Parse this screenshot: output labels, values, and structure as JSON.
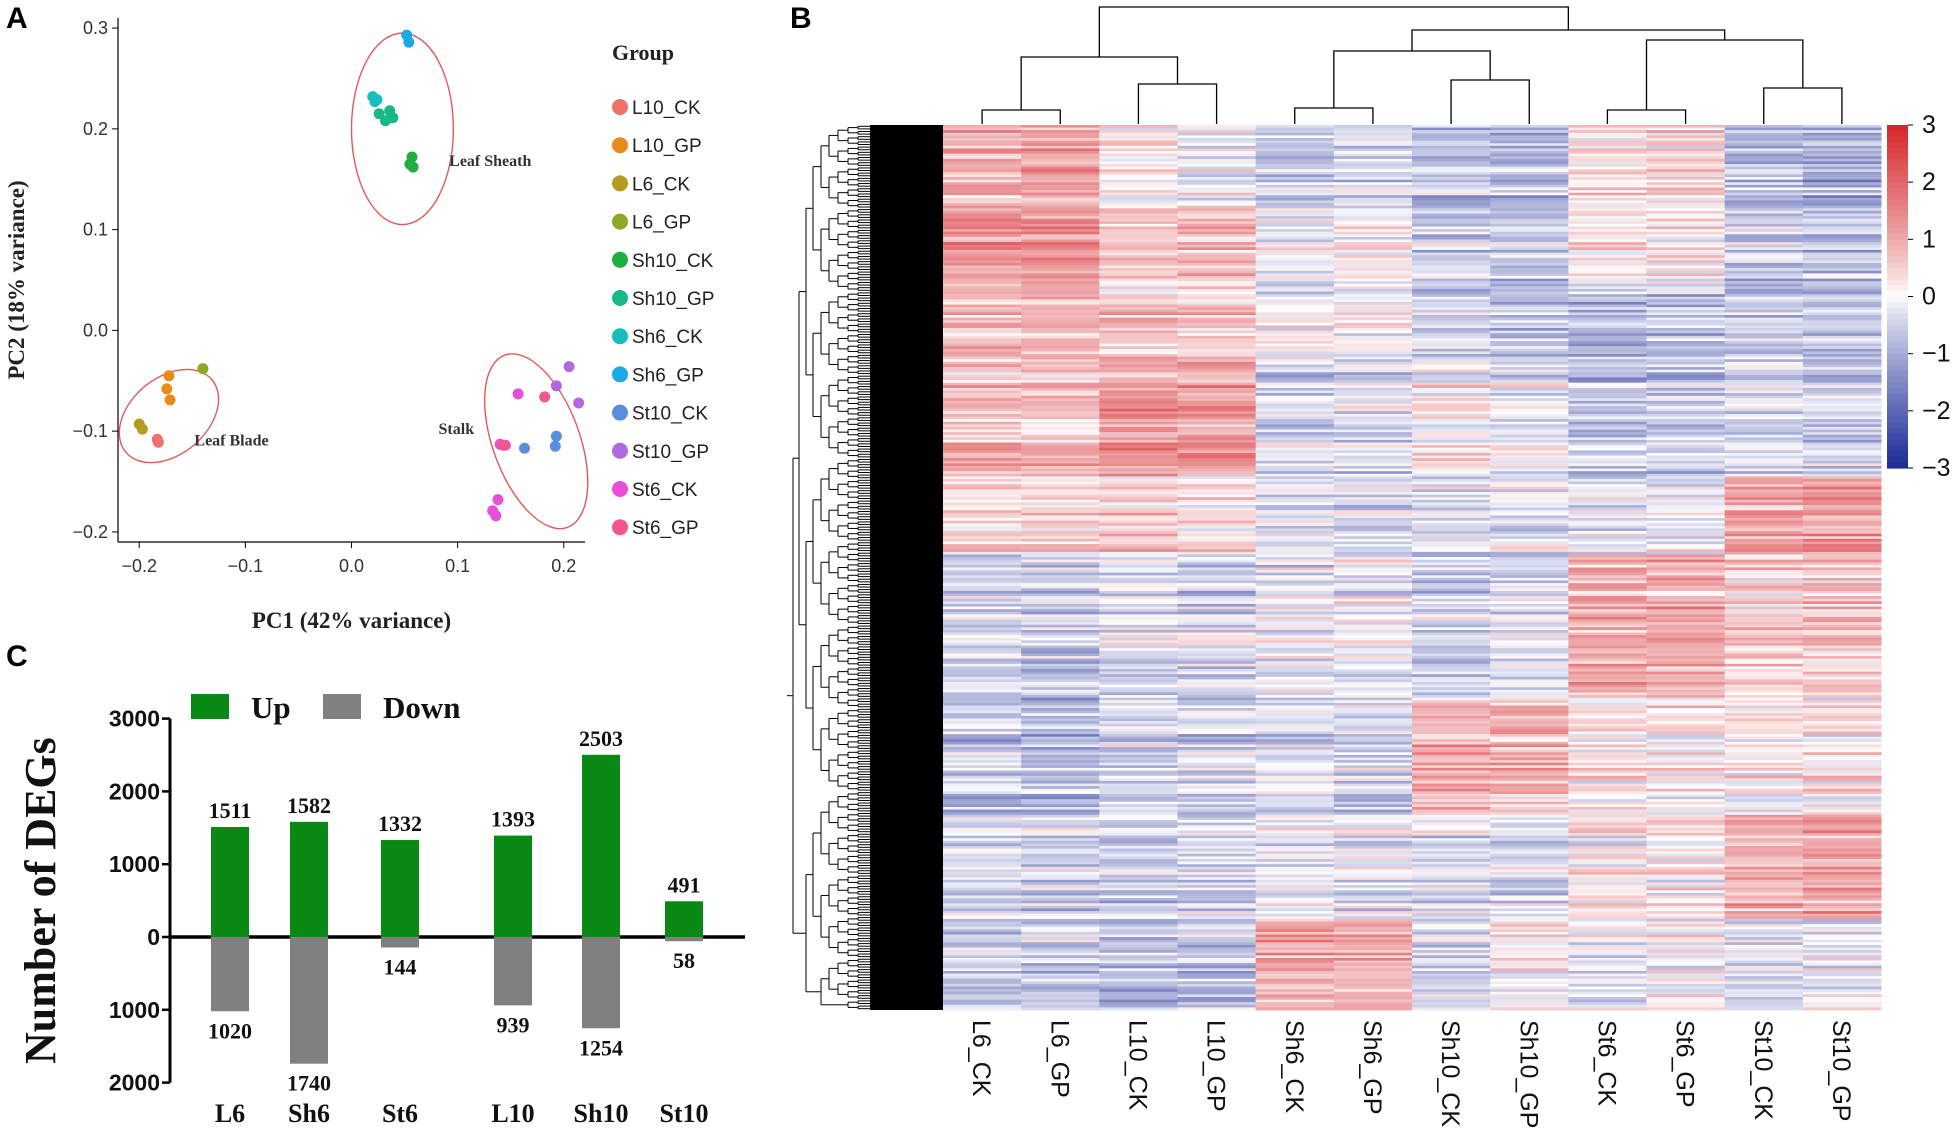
{
  "panel_letters": {
    "a": "A",
    "b": "B",
    "c": "C"
  },
  "chart_data": [
    {
      "type": "scatter",
      "panel": "A",
      "xlabel": "PC1 (42% variance)",
      "ylabel": "PC2 (18% variance)",
      "xlim": [
        -0.22,
        0.22
      ],
      "ylim": [
        -0.21,
        0.31
      ],
      "xticks": [
        -0.2,
        -0.1,
        0.0,
        0.1,
        0.2
      ],
      "xtick_labels": [
        "−0.2",
        "−0.1",
        "0.0",
        "0.1",
        "0.2"
      ],
      "yticks": [
        0.3,
        0.2,
        0.1,
        0.0,
        -0.1,
        -0.2
      ],
      "ytick_labels": [
        "0.3",
        "0.2",
        "0.1",
        "0.0",
        "−0.1",
        "−0.2"
      ],
      "legend_title": "Group",
      "groups": [
        {
          "name": "L10_CK",
          "color": "#f0706b",
          "points": [
            [
              -0.183,
              -0.108
            ],
            [
              -0.182,
              -0.111
            ]
          ]
        },
        {
          "name": "L10_GP",
          "color": "#e88a1c",
          "points": [
            [
              -0.172,
              -0.045
            ],
            [
              -0.174,
              -0.058
            ],
            [
              -0.171,
              -0.069
            ]
          ]
        },
        {
          "name": "L6_CK",
          "color": "#b59b1f",
          "points": [
            [
              -0.2,
              -0.093
            ],
            [
              -0.197,
              -0.098
            ]
          ]
        },
        {
          "name": "L6_GP",
          "color": "#8aaa26",
          "points": [
            [
              -0.14,
              -0.038
            ]
          ]
        },
        {
          "name": "Sh10_CK",
          "color": "#1fae3f",
          "points": [
            [
              0.057,
              0.172
            ],
            [
              0.058,
              0.162
            ],
            [
              0.055,
              0.165
            ]
          ]
        },
        {
          "name": "Sh10_GP",
          "color": "#18b88b",
          "points": [
            [
              0.026,
              0.215
            ],
            [
              0.032,
              0.208
            ],
            [
              0.036,
              0.218
            ],
            [
              0.039,
              0.211
            ]
          ]
        },
        {
          "name": "Sh6_CK",
          "color": "#18bdbd",
          "points": [
            [
              0.02,
              0.232
            ],
            [
              0.022,
              0.227
            ],
            [
              0.024,
              0.229
            ]
          ]
        },
        {
          "name": "Sh6_GP",
          "color": "#1aa9e8",
          "points": [
            [
              0.052,
              0.293
            ],
            [
              0.054,
              0.286
            ]
          ]
        },
        {
          "name": "St10_CK",
          "color": "#5a8de0",
          "points": [
            [
              0.163,
              -0.117
            ],
            [
              0.192,
              -0.115
            ],
            [
              0.193,
              -0.105
            ]
          ]
        },
        {
          "name": "St10_GP",
          "color": "#b06ae0",
          "points": [
            [
              0.193,
              -0.055
            ],
            [
              0.214,
              -0.072
            ],
            [
              0.205,
              -0.036
            ]
          ]
        },
        {
          "name": "St6_CK",
          "color": "#e84fd8",
          "points": [
            [
              0.157,
              -0.063
            ],
            [
              0.14,
              -0.113
            ],
            [
              0.145,
              -0.114
            ],
            [
              0.138,
              -0.168
            ],
            [
              0.133,
              -0.179
            ],
            [
              0.136,
              -0.184
            ]
          ]
        },
        {
          "name": "St6_GP",
          "color": "#f0578e",
          "points": [
            [
              0.182,
              -0.066
            ],
            [
              0.143,
              -0.114
            ]
          ]
        }
      ],
      "annotations": [
        {
          "text": "Leaf Sheath",
          "at": [
            0.092,
            0.163
          ]
        },
        {
          "text": "Leaf Blade",
          "at": [
            -0.148,
            -0.114
          ]
        },
        {
          "text": "Stalk",
          "at": [
            0.082,
            -0.103
          ]
        }
      ],
      "ellipses": [
        {
          "center": [
            0.048,
            0.2
          ],
          "radii": [
            0.048,
            0.095
          ],
          "angle": 0
        },
        {
          "center": [
            -0.172,
            -0.085
          ],
          "radii": [
            0.053,
            0.038
          ],
          "angle": 40
        },
        {
          "center": [
            0.174,
            -0.11
          ],
          "radii": [
            0.041,
            0.091
          ],
          "angle": 20
        }
      ]
    },
    {
      "type": "heatmap",
      "panel": "B",
      "columns": [
        "L6_CK",
        "L6_GP",
        "L10_CK",
        "L10_GP",
        "Sh6_CK",
        "Sh6_GP",
        "Sh10_CK",
        "Sh10_GP",
        "St6_CK",
        "St6_GP",
        "St10_CK",
        "St10_GP"
      ],
      "color_scale": {
        "min": -3,
        "max": 3,
        "low": "#1b2a96",
        "mid": "#ffffff",
        "high": "#d5262b"
      },
      "colorbar_ticks": [
        3,
        2,
        1,
        0,
        -1,
        -2,
        -3
      ],
      "colorbar_tick_labels": [
        "3",
        "2",
        "1",
        "0",
        "−1",
        "−2",
        "−3"
      ],
      "row_clusters": [
        {
          "rows": 30,
          "values": [
            1.2,
            1.3,
            0.2,
            -0.2,
            -0.8,
            -0.5,
            -0.9,
            -1.0,
            0.4,
            0.5,
            -0.9,
            -1.2
          ]
        },
        {
          "rows": 35,
          "values": [
            1.5,
            1.4,
            0.6,
            0.8,
            -0.2,
            0.0,
            -0.7,
            -0.8,
            0.1,
            0.2,
            -0.8,
            -0.9
          ]
        },
        {
          "rows": 25,
          "values": [
            1.1,
            1.0,
            0.9,
            0.7,
            0.3,
            0.2,
            -0.5,
            -0.7,
            -1.0,
            -0.8,
            -0.5,
            -0.6
          ]
        },
        {
          "rows": 45,
          "values": [
            0.9,
            0.8,
            1.6,
            1.4,
            -0.5,
            -0.4,
            0.2,
            -0.3,
            -0.8,
            -0.7,
            -0.5,
            -0.6
          ]
        },
        {
          "rows": 30,
          "values": [
            0.6,
            0.5,
            0.6,
            0.5,
            -0.3,
            -0.5,
            -0.3,
            -0.2,
            -0.3,
            -0.2,
            1.3,
            1.5
          ]
        },
        {
          "rows": 55,
          "values": [
            -0.6,
            -0.7,
            -0.4,
            -0.5,
            -0.3,
            -0.2,
            -0.6,
            -0.5,
            1.3,
            1.2,
            0.6,
            0.7
          ]
        },
        {
          "rows": 45,
          "values": [
            -0.8,
            -0.9,
            -0.5,
            -0.6,
            -0.4,
            -0.5,
            1.1,
            1.0,
            0.3,
            0.2,
            0.2,
            0.3
          ]
        },
        {
          "rows": 40,
          "values": [
            -0.5,
            -0.6,
            -0.7,
            -0.6,
            -0.3,
            -0.2,
            -0.4,
            -0.5,
            0.1,
            0.2,
            1.1,
            1.3
          ]
        },
        {
          "rows": 35,
          "values": [
            -0.7,
            -0.6,
            -0.9,
            -0.8,
            1.3,
            1.2,
            -0.5,
            0.3,
            -0.2,
            0.0,
            -0.3,
            -0.2
          ]
        }
      ]
    },
    {
      "type": "bar",
      "panel": "C",
      "categories": [
        "L6",
        "Sh6",
        "St6",
        "L10",
        "Sh10",
        "St10"
      ],
      "series": [
        {
          "name": "Up",
          "color": "#0a8a14",
          "values": [
            1511,
            1582,
            1332,
            1393,
            2503,
            491
          ]
        },
        {
          "name": "Down",
          "color": "#808080",
          "values": [
            -1020,
            -1740,
            -144,
            -939,
            -1254,
            -58
          ]
        }
      ],
      "value_labels_up": [
        "1511",
        "1582",
        "1332",
        "1393",
        "2503",
        "491"
      ],
      "value_labels_down": [
        "1020",
        "1740",
        "144",
        "939",
        "1254",
        "58"
      ],
      "ylabel": "Number of DEGs",
      "ylim": [
        -2000,
        3000
      ],
      "yticks": [
        3000,
        2000,
        1000,
        0,
        -1000,
        -2000
      ],
      "ytick_labels": [
        "3000",
        "2000",
        "1000",
        "0",
        "1000",
        "2000"
      ],
      "legend": [
        "Up",
        "Down"
      ]
    }
  ]
}
